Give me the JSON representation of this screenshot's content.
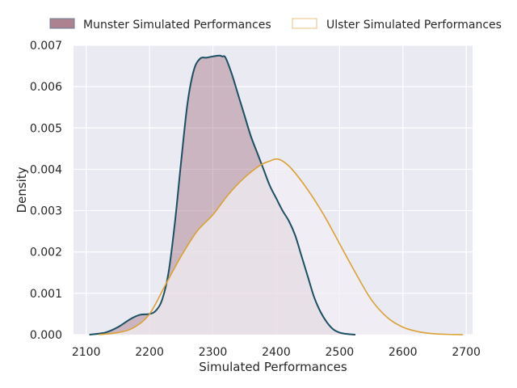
{
  "chart_data": {
    "type": "area",
    "xlabel": "Simulated Performances",
    "ylabel": "Density",
    "xlim": [
      2080,
      2710
    ],
    "ylim": [
      0,
      0.007
    ],
    "xticks": [
      "2100",
      "2200",
      "2300",
      "2400",
      "2500",
      "2600",
      "2700"
    ],
    "yticks": [
      "0.000",
      "0.001",
      "0.002",
      "0.003",
      "0.004",
      "0.005",
      "0.006",
      "0.007"
    ],
    "grid": true,
    "legend_position": "top",
    "series": [
      {
        "name": "Munster Simulated Performances",
        "style": "filled",
        "line_color": "#1b4f63",
        "fill_color": "#9e6b7c",
        "x": [
          2105,
          2130,
          2150,
          2170,
          2185,
          2200,
          2210,
          2220,
          2230,
          2240,
          2250,
          2260,
          2270,
          2280,
          2290,
          2300,
          2310,
          2315,
          2320,
          2330,
          2340,
          2350,
          2360,
          2370,
          2380,
          2390,
          2400,
          2410,
          2420,
          2430,
          2440,
          2450,
          2460,
          2470,
          2480,
          2490,
          2500,
          2510,
          2525
        ],
        "y": [
          0.0,
          5e-05,
          0.00018,
          0.00038,
          0.00048,
          0.0005,
          0.00058,
          0.00085,
          0.0015,
          0.0027,
          0.0042,
          0.0056,
          0.0064,
          0.00668,
          0.0067,
          0.00673,
          0.00675,
          0.00673,
          0.0067,
          0.0063,
          0.0058,
          0.0053,
          0.0048,
          0.0044,
          0.004,
          0.0036,
          0.0033,
          0.003,
          0.00275,
          0.0024,
          0.0019,
          0.0014,
          0.0009,
          0.00055,
          0.0003,
          0.00013,
          5e-05,
          2e-05,
          0.0
        ]
      },
      {
        "name": "Ulster Simulated Performances",
        "style": "line",
        "line_color": "#dba135",
        "fill_color": "#f2eff4",
        "x": [
          2120,
          2150,
          2175,
          2200,
          2225,
          2250,
          2275,
          2300,
          2325,
          2350,
          2375,
          2390,
          2400,
          2410,
          2425,
          2450,
          2475,
          2500,
          2525,
          2550,
          2575,
          2600,
          2625,
          2650,
          2675,
          2695
        ],
        "y": [
          0.0,
          5e-05,
          0.00017,
          0.0005,
          0.0012,
          0.0019,
          0.0025,
          0.0029,
          0.0034,
          0.0038,
          0.0041,
          0.0042,
          0.00425,
          0.0042,
          0.004,
          0.0035,
          0.0029,
          0.0022,
          0.0015,
          0.00085,
          0.00042,
          0.00018,
          7e-05,
          2e-05,
          5e-06,
          0.0
        ]
      }
    ]
  }
}
